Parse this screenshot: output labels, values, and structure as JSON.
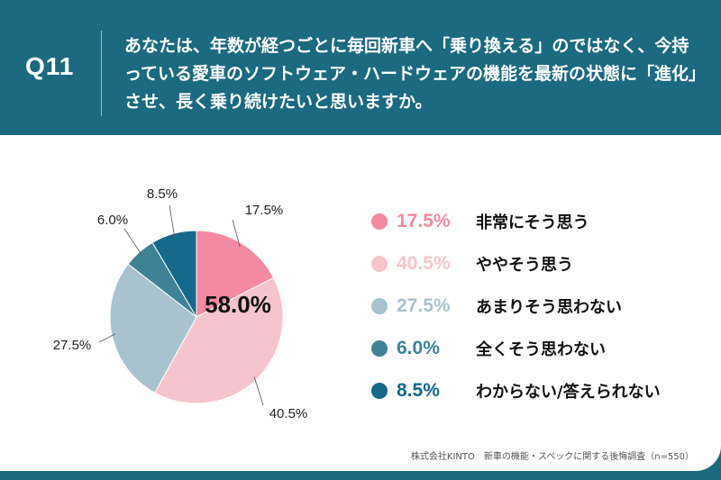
{
  "header": {
    "question_no": "Q11",
    "question_text": "あなたは、年数が経つごとに毎回新車へ「乗り換える」のではなく、今持っている愛車のソフトウェア・ハードウェアの機能を最新の状態に「進化」させ、長く乗り続けたいと思いますか。"
  },
  "chart_data": {
    "type": "pie",
    "title": "",
    "categories": [
      "非常にそう思う",
      "ややそう思う",
      "あまりそう思わない",
      "全くそう思わない",
      "わからない/答えられない"
    ],
    "values": [
      17.5,
      40.5,
      27.5,
      6.0,
      8.5
    ],
    "value_labels": [
      "17.5%",
      "40.5%",
      "27.5%",
      "6.0%",
      "8.5%"
    ],
    "colors": [
      "#f48aa1",
      "#f6c4cd",
      "#a8c3ce",
      "#3f8296",
      "#15698a"
    ],
    "center_label": "58.0%",
    "legend_position": "right"
  },
  "legend": [
    {
      "value": "17.5%",
      "label": "非常にそう思う",
      "color": "#f48aa1"
    },
    {
      "value": "40.5%",
      "label": "ややそう思う",
      "color": "#f6c4cd"
    },
    {
      "value": "27.5%",
      "label": "あまりそう思わない",
      "color": "#a8c3ce"
    },
    {
      "value": "6.0%",
      "label": "全くそう思わない",
      "color": "#3f8296"
    },
    {
      "value": "8.5%",
      "label": "わからない/答えられない",
      "color": "#15698a"
    }
  ],
  "footer": {
    "source": "株式会社KINTO　新車の機能・スペックに関する後悔調査（n=550）",
    "logo_text": "KINTO"
  }
}
